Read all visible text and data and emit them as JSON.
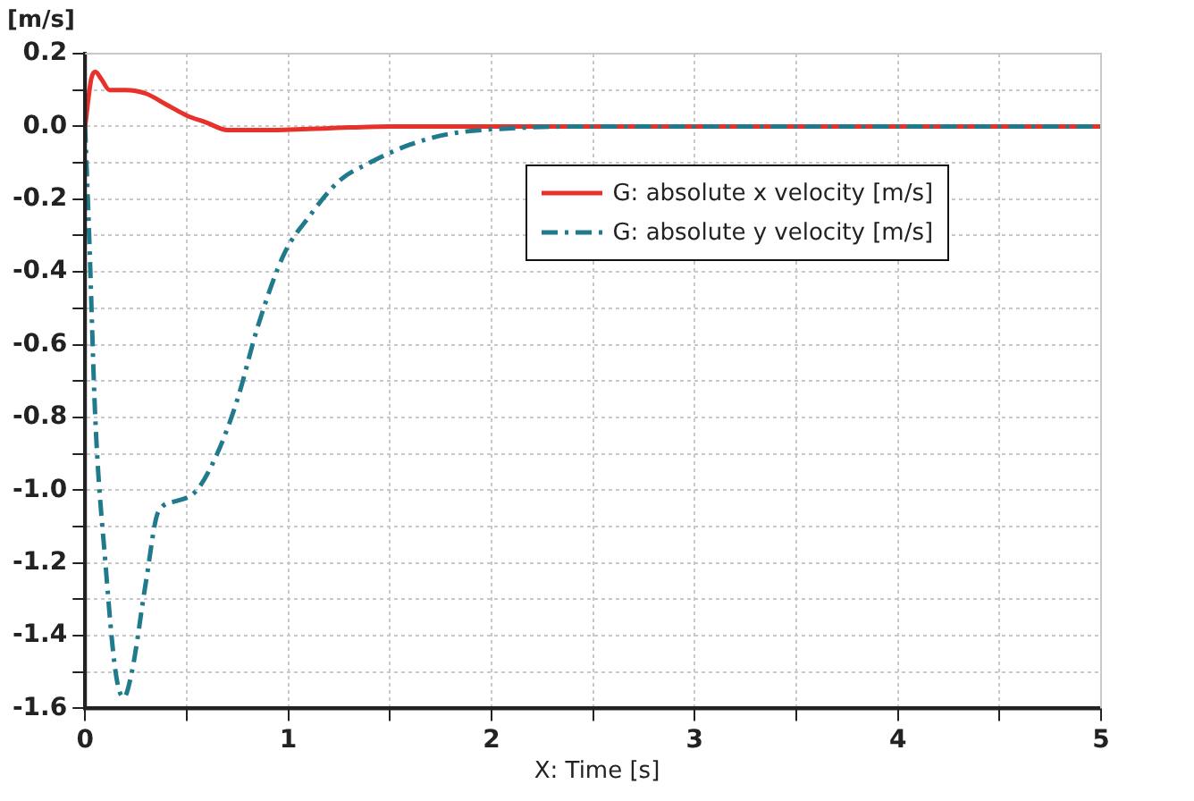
{
  "chart_data": {
    "type": "line",
    "xlabel": "X: Time [s]",
    "ylabel": "[m/s]",
    "xlim": [
      0,
      5
    ],
    "xticks": [
      0,
      {
        "value": 0.5,
        "label": null
      },
      1,
      {
        "value": 1.5,
        "label": null
      },
      2,
      {
        "value": 2.5,
        "label": null
      },
      3,
      {
        "value": 3.5,
        "label": null
      },
      4,
      {
        "value": 4.5,
        "label": null
      },
      5
    ],
    "ylim": [
      -1.6,
      0.2
    ],
    "yticks": [
      -1.6,
      {
        "value": -1.5,
        "label": null
      },
      -1.4,
      {
        "value": -1.3,
        "label": null
      },
      -1.2,
      {
        "value": -1.1,
        "label": null
      },
      {
        "value": -1,
        "label": "-1.0"
      },
      {
        "value": -0.9,
        "label": null
      },
      -0.8,
      {
        "value": -0.7,
        "label": null
      },
      -0.6,
      {
        "value": -0.5,
        "label": null
      },
      -0.4,
      {
        "value": -0.3,
        "label": null
      },
      -0.2,
      {
        "value": -0.1,
        "label": null
      },
      {
        "value": 0,
        "label": "0.0"
      },
      {
        "value": 0.1,
        "label": null
      },
      0.2
    ],
    "grid": true,
    "legend": "top right",
    "marker": "none",
    "series": [
      {
        "name": "G: absolute x velocity [m/s]",
        "color": "#e8312a",
        "line_style": "solid",
        "x": [
          0,
          0.03,
          0.05,
          0.08,
          0.12,
          0.2,
          0.3,
          0.4,
          0.5,
          0.6,
          0.7,
          0.8,
          0.9,
          1.2,
          1.5,
          2,
          3,
          4,
          5
        ],
        "values": [
          0,
          0.13,
          0.15,
          0.13,
          0.1,
          0.1,
          0.09,
          0.06,
          0.03,
          0.01,
          -0.01,
          -0.01,
          -0.01,
          -0.005,
          0,
          0,
          0,
          0,
          0
        ]
      },
      {
        "name": "G: absolute y velocity [m/s]",
        "color": "#1f7a8c",
        "line_style": "dashed",
        "x": [
          0,
          0.02,
          0.05,
          0.1,
          0.15,
          0.19,
          0.23,
          0.3,
          0.36,
          0.45,
          0.55,
          0.65,
          0.75,
          0.85,
          0.98,
          1.1,
          1.25,
          1.4,
          1.6,
          1.8,
          2.1,
          2.5,
          3,
          4,
          5
        ],
        "values": [
          0,
          -0.3,
          -0.8,
          -1.2,
          -1.5,
          -1.57,
          -1.5,
          -1.25,
          -1.06,
          -1.03,
          -1.0,
          -0.9,
          -0.75,
          -0.55,
          -0.35,
          -0.25,
          -0.15,
          -0.1,
          -0.05,
          -0.02,
          -0.005,
          0,
          0,
          0,
          0
        ]
      }
    ]
  }
}
